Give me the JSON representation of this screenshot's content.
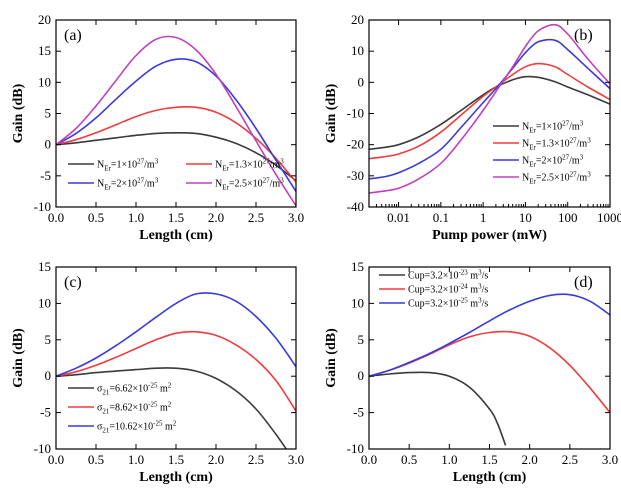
{
  "chart_data": [
    {
      "id": "a",
      "panel_label": "(a)",
      "type": "line",
      "xlabel": "Length (cm)",
      "ylabel": "Gain (dB)",
      "xlim": [
        0.0,
        3.0
      ],
      "ylim": [
        -10,
        20
      ],
      "x_scale": "linear",
      "xticks": [
        "0.0",
        "0.5",
        "1.0",
        "1.5",
        "2.0",
        "2.5",
        "3.0"
      ],
      "yticks": [
        "-10",
        "-5",
        "0",
        "5",
        "10",
        "15",
        "20"
      ],
      "legend": {
        "placement": "bottom",
        "columns": 2
      },
      "series": [
        {
          "name": "N_Er=1×10^27/m^3",
          "legend_main": "N",
          "legend_sub": "Er",
          "legend_rest1": "=1×10",
          "legend_sup": "27",
          "legend_rest2": "/m",
          "legend_sup2": "3",
          "color": "#3a3a3a",
          "x": [
            0,
            0.25,
            0.5,
            0.75,
            1.0,
            1.25,
            1.5,
            1.75,
            2.0,
            2.25,
            2.5,
            2.75,
            3.0
          ],
          "y": [
            0,
            0.3,
            0.7,
            1.1,
            1.5,
            1.8,
            1.9,
            1.8,
            1.2,
            0.2,
            -1.3,
            -3.3,
            -5.8
          ]
        },
        {
          "name": "N_Er=1.3×10^27/m^3",
          "legend_main": "N",
          "legend_sub": "Er",
          "legend_rest1": "=1.3×10",
          "legend_sup": "27",
          "legend_rest2": "/m",
          "legend_sup2": "3",
          "color": "#f03c3c",
          "x": [
            0,
            0.25,
            0.5,
            0.75,
            1.0,
            1.25,
            1.5,
            1.75,
            2.0,
            2.25,
            2.5,
            2.75,
            3.0
          ],
          "y": [
            0,
            0.8,
            1.9,
            3.2,
            4.5,
            5.5,
            6.0,
            6.0,
            5.2,
            3.5,
            1.0,
            -2.2,
            -6.0
          ]
        },
        {
          "name": "N_Er=2×10^27/m^3",
          "legend_main": "N",
          "legend_sub": "Er",
          "legend_rest1": "=2×10",
          "legend_sup": "27",
          "legend_rest2": "/m",
          "legend_sup2": "3",
          "color": "#3a3adc",
          "x": [
            0,
            0.25,
            0.5,
            0.75,
            1.0,
            1.25,
            1.5,
            1.75,
            2.0,
            2.25,
            2.5,
            2.75,
            3.0
          ],
          "y": [
            0,
            1.8,
            4.3,
            7.3,
            10.2,
            12.6,
            13.7,
            13.3,
            11.0,
            7.2,
            2.6,
            -2.5,
            -7.5
          ]
        },
        {
          "name": "N_Er=2.5×10^27/m^3",
          "legend_main": "N",
          "legend_sub": "Er",
          "legend_rest1": "=2.5×10",
          "legend_sup": "27",
          "legend_rest2": "/m",
          "legend_sup2": "3",
          "color": "#c040c0",
          "x": [
            0,
            0.25,
            0.5,
            0.75,
            1.0,
            1.25,
            1.5,
            1.75,
            2.0,
            2.25,
            2.5,
            2.75,
            3.0
          ],
          "y": [
            0,
            2.6,
            6.2,
            10.3,
            14.3,
            16.9,
            17.2,
            15.2,
            11.3,
            6.1,
            0.6,
            -4.8,
            -9.8
          ]
        }
      ]
    },
    {
      "id": "b",
      "panel_label": "(b)",
      "type": "line",
      "xlabel": "Pump power (mW)",
      "ylabel": "Gain (dB)",
      "xlim": [
        0.002,
        1000
      ],
      "ylim": [
        -40,
        20
      ],
      "x_scale": "log",
      "xtick_values": [
        0.01,
        0.1,
        1,
        10,
        100,
        1000
      ],
      "xticks": [
        "0.01",
        "0.1",
        "1",
        "10",
        "100",
        "1000"
      ],
      "yticks": [
        "-40",
        "-30",
        "-20",
        "-10",
        "0",
        "10",
        "20"
      ],
      "legend": {
        "placement": "lower-right",
        "columns": 1
      },
      "series": [
        {
          "name": "N_Er=1×10^27/m^3",
          "legend_main": "N",
          "legend_sub": "Er",
          "legend_rest1": "=1×10",
          "legend_sup": "27",
          "legend_rest2": "/m",
          "legend_sup2": "3",
          "color": "#3a3a3a",
          "x": [
            0.002,
            0.005,
            0.01,
            0.03,
            0.1,
            0.3,
            1,
            2,
            5,
            10,
            20,
            50,
            100,
            300,
            1000
          ],
          "y": [
            -21.5,
            -20.8,
            -20.0,
            -17.5,
            -13.5,
            -9.0,
            -4.0,
            -1.5,
            0.8,
            1.8,
            1.6,
            0.2,
            -1.5,
            -4.0,
            -7.0
          ]
        },
        {
          "name": "N_Er=1.3×10^27/m^3",
          "legend_main": "N",
          "legend_sub": "Er",
          "legend_rest1": "=1.3×10",
          "legend_sup": "27",
          "legend_rest2": "/m",
          "legend_sup2": "3",
          "color": "#f03c3c",
          "x": [
            0.002,
            0.005,
            0.01,
            0.03,
            0.1,
            0.3,
            1,
            2,
            5,
            10,
            20,
            50,
            100,
            300,
            1000
          ],
          "y": [
            -24.5,
            -23.8,
            -23.0,
            -20.5,
            -16.0,
            -10.5,
            -4.5,
            -1.5,
            2.5,
            5.0,
            6.0,
            5.0,
            2.5,
            -1.5,
            -5.5
          ]
        },
        {
          "name": "N_Er=2×10^27/m^3",
          "legend_main": "N",
          "legend_sub": "Er",
          "legend_rest1": "=2×10",
          "legend_sup": "27",
          "legend_rest2": "/m",
          "legend_sup2": "3",
          "color": "#3a3adc",
          "x": [
            0.002,
            0.005,
            0.01,
            0.03,
            0.1,
            0.3,
            1,
            2,
            5,
            10,
            20,
            50,
            100,
            300,
            1000
          ],
          "y": [
            -31.0,
            -30.2,
            -29.0,
            -26.0,
            -21.5,
            -14.5,
            -6.5,
            -2.0,
            4.5,
            9.5,
            13.0,
            13.5,
            10.5,
            4.5,
            -2.0
          ]
        },
        {
          "name": "N_Er=2.5×10^27/m^3",
          "legend_main": "N",
          "legend_sub": "Er",
          "legend_rest1": "=2.5×10",
          "legend_sup": "27",
          "legend_rest2": "/m",
          "legend_sup2": "3",
          "color": "#c040c0",
          "x": [
            0.002,
            0.005,
            0.01,
            0.03,
            0.1,
            0.3,
            1,
            2,
            5,
            10,
            20,
            50,
            100,
            300,
            1000
          ],
          "y": [
            -35.5,
            -34.8,
            -34.0,
            -31.0,
            -26.0,
            -18.5,
            -9.0,
            -3.0,
            5.0,
            11.5,
            16.5,
            18.5,
            15.5,
            7.5,
            -0.5
          ]
        }
      ]
    },
    {
      "id": "c",
      "panel_label": "(c)",
      "type": "line",
      "xlabel": "Length  (cm)",
      "ylabel": "Gain (dB)",
      "xlim": [
        0.0,
        3.0
      ],
      "ylim": [
        -10,
        15
      ],
      "x_scale": "linear",
      "xticks": [
        "0.0",
        "0.5",
        "1.0",
        "1.5",
        "2.0",
        "2.5",
        "3.0"
      ],
      "yticks": [
        "-10",
        "-5",
        "0",
        "5",
        "10",
        "15"
      ],
      "legend": {
        "placement": "bottom-left",
        "columns": 1
      },
      "series": [
        {
          "name": "σ21=6.62×10^-25 m^2",
          "legend_main": "σ",
          "legend_sub": "21",
          "legend_rest1": "=6.62×10",
          "legend_sup": "-25",
          "legend_rest2": " m",
          "legend_sup2": "2",
          "color": "#3a3a3a",
          "x": [
            0,
            0.25,
            0.5,
            0.75,
            1.0,
            1.25,
            1.5,
            1.75,
            2.0,
            2.25,
            2.5,
            2.75,
            3.0
          ],
          "y": [
            0,
            0.2,
            0.5,
            0.7,
            0.9,
            1.1,
            1.1,
            0.7,
            -0.3,
            -2.0,
            -4.5,
            -8.0,
            -12.0
          ]
        },
        {
          "name": "σ21=8.62×10^-25 m^2",
          "legend_main": "σ",
          "legend_sub": "21",
          "legend_rest1": "=8.62×10",
          "legend_sup": "-25",
          "legend_rest2": " m",
          "legend_sup2": "2",
          "color": "#f03c3c",
          "x": [
            0,
            0.25,
            0.5,
            0.75,
            1.0,
            1.25,
            1.5,
            1.75,
            2.0,
            2.25,
            2.5,
            2.75,
            3.0
          ],
          "y": [
            0,
            0.6,
            1.5,
            2.6,
            3.8,
            5.0,
            5.9,
            6.1,
            5.6,
            4.3,
            2.3,
            -0.6,
            -4.8
          ]
        },
        {
          "name": "σ21=10.62×10^-25 m^2",
          "legend_main": "σ",
          "legend_sub": "21",
          "legend_rest1": "=10.62×10",
          "legend_sup": "-25",
          "legend_rest2": " m",
          "legend_sup2": "2",
          "color": "#3a3adc",
          "x": [
            0,
            0.25,
            0.5,
            0.75,
            1.0,
            1.25,
            1.5,
            1.75,
            2.0,
            2.25,
            2.5,
            2.75,
            3.0
          ],
          "y": [
            0,
            1.1,
            2.5,
            4.2,
            6.1,
            8.1,
            10.0,
            11.3,
            11.3,
            10.3,
            8.2,
            5.2,
            1.3
          ]
        }
      ]
    },
    {
      "id": "d",
      "panel_label": "(d)",
      "type": "line",
      "xlabel": "Length (cm)",
      "ylabel": "Gain (dB)",
      "xlim": [
        0.0,
        3.0
      ],
      "ylim": [
        -10,
        15
      ],
      "x_scale": "linear",
      "xticks": [
        "0.0",
        "0.5",
        "1.0",
        "1.5",
        "2.0",
        "2.5",
        "3.0"
      ],
      "yticks": [
        "-10",
        "-5",
        "0",
        "5",
        "10",
        "15"
      ],
      "legend": {
        "placement": "top-left",
        "columns": 1
      },
      "series": [
        {
          "name": "Cup=3.2×10^-23 m^3/s",
          "legend_main": "Cup",
          "legend_sub": "",
          "legend_rest1": "=3.2×10",
          "legend_sup": "-23",
          "legend_rest2": " m",
          "legend_sup2": "3",
          "legend_rest3": "/s",
          "color": "#3a3a3a",
          "x": [
            0,
            0.25,
            0.5,
            0.75,
            1.0,
            1.25,
            1.5,
            1.6,
            1.7
          ],
          "y": [
            0,
            0.3,
            0.5,
            0.5,
            0.0,
            -1.5,
            -4.5,
            -6.5,
            -9.5
          ]
        },
        {
          "name": "Cup=3.2×10^-24 m^3/s",
          "legend_main": "Cup",
          "legend_sub": "",
          "legend_rest1": "=3.2×10",
          "legend_sup": "-24",
          "legend_rest2": " m",
          "legend_sup2": "3",
          "legend_rest3": "/s",
          "color": "#f03c3c",
          "x": [
            0,
            0.25,
            0.5,
            0.75,
            1.0,
            1.25,
            1.5,
            1.75,
            2.0,
            2.25,
            2.5,
            2.75,
            3.0
          ],
          "y": [
            0,
            0.8,
            1.8,
            3.0,
            4.3,
            5.4,
            6.0,
            6.1,
            5.5,
            3.9,
            1.5,
            -1.6,
            -5.0
          ]
        },
        {
          "name": "Cup=3.2×10^-25 m^3/s",
          "legend_main": "Cup",
          "legend_sub": "",
          "legend_rest1": "=3.2×10",
          "legend_sup": "-25",
          "legend_rest2": " m",
          "legend_sup2": "3",
          "legend_rest3": "/s",
          "color": "#3a3adc",
          "x": [
            0,
            0.25,
            0.5,
            0.75,
            1.0,
            1.25,
            1.5,
            1.75,
            2.0,
            2.25,
            2.5,
            2.75,
            3.0
          ],
          "y": [
            0,
            0.8,
            1.9,
            3.1,
            4.5,
            6.0,
            7.6,
            9.1,
            10.3,
            11.1,
            11.2,
            10.3,
            8.4
          ]
        }
      ]
    }
  ]
}
